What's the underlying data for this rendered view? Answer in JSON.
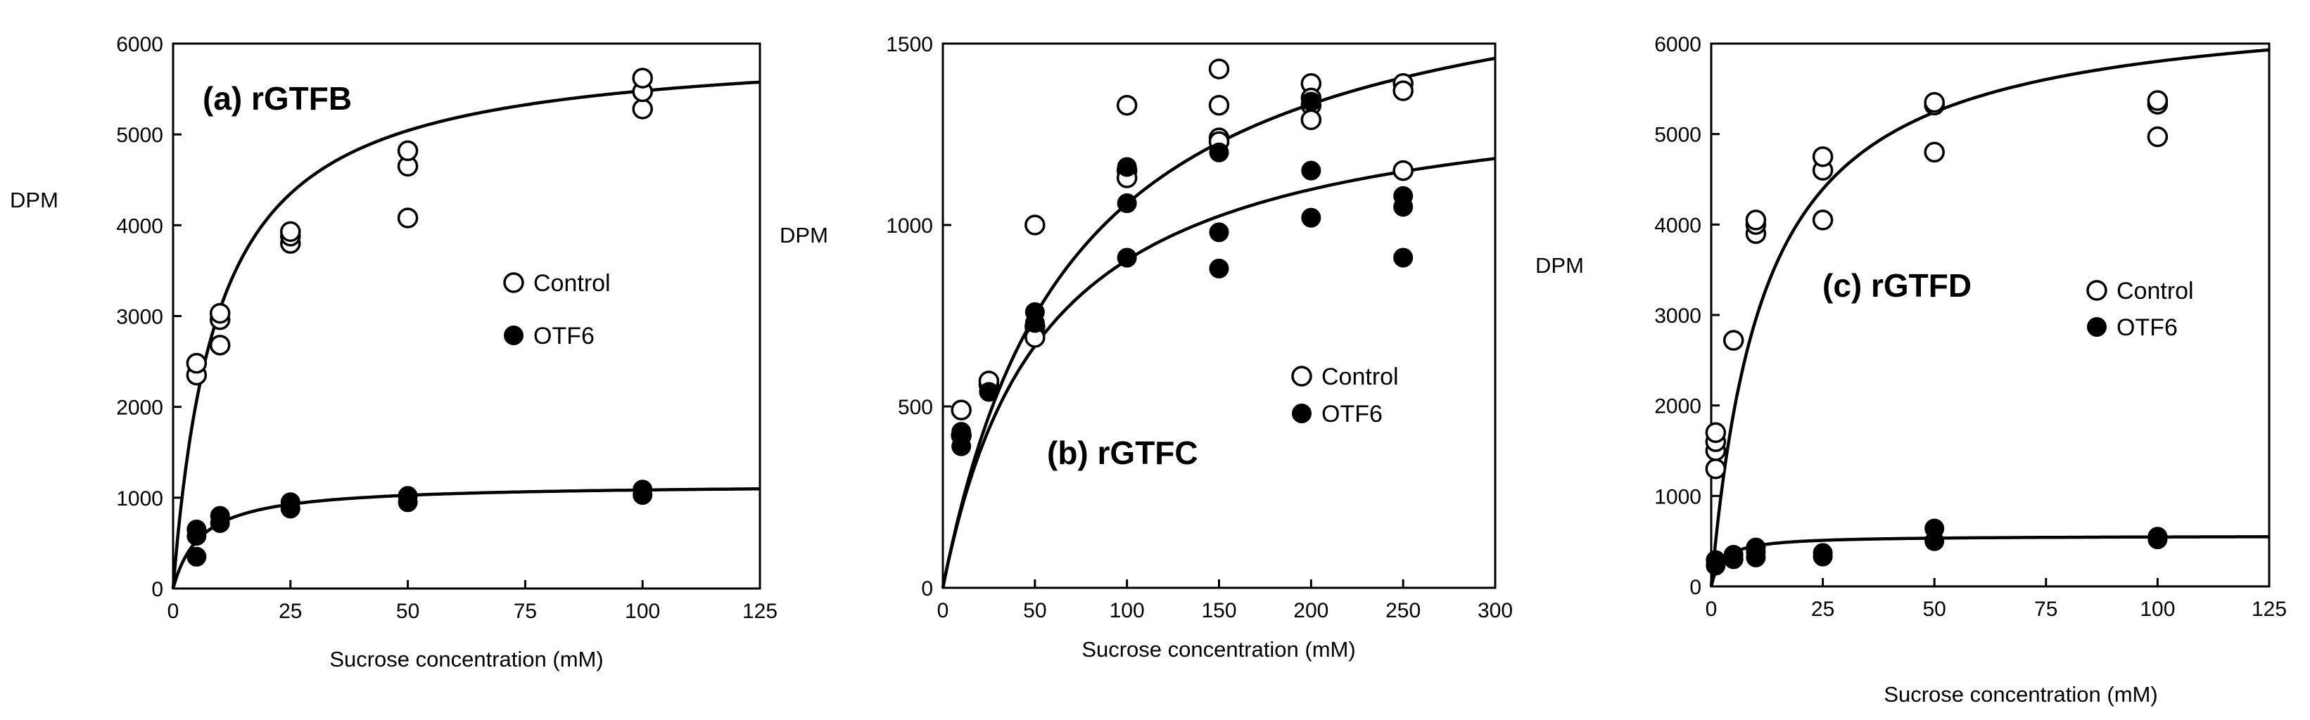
{
  "chart_data": [
    {
      "type": "scatter",
      "title": "(a) rGTFB",
      "xlabel": "Sucrose concentration (mM)",
      "ylabel": "DPM",
      "xlim": [
        0,
        125
      ],
      "ylim": [
        0,
        6000
      ],
      "xticks": [
        0,
        25,
        50,
        75,
        100,
        125
      ],
      "yticks": [
        0,
        1000,
        2000,
        3000,
        4000,
        5000,
        6000
      ],
      "legend": [
        "Control",
        "OTF6"
      ],
      "series": [
        {
          "name": "Control",
          "marker": "open",
          "x": [
            5,
            5,
            10,
            10,
            10,
            25,
            25,
            25,
            50,
            50,
            50,
            100,
            100,
            100
          ],
          "y": [
            2350,
            2480,
            2680,
            2960,
            3030,
            3800,
            3880,
            3930,
            4080,
            4650,
            4820,
            5280,
            5470,
            5620
          ],
          "fit": {
            "vmax": 6000,
            "km": 9.5
          }
        },
        {
          "name": "OTF6",
          "marker": "filled",
          "x": [
            5,
            5,
            5,
            10,
            10,
            25,
            25,
            50,
            50,
            100,
            100
          ],
          "y": [
            350,
            580,
            650,
            720,
            800,
            880,
            950,
            950,
            1020,
            1030,
            1090
          ],
          "fit": {
            "vmax": 1150,
            "km": 6
          }
        }
      ]
    },
    {
      "type": "scatter",
      "title": "(b) rGTFC",
      "xlabel": "Sucrose concentration (mM)",
      "ylabel": "DPM",
      "xlim": [
        0,
        300
      ],
      "ylim": [
        0,
        1500
      ],
      "xticks": [
        0,
        50,
        100,
        150,
        200,
        250,
        300
      ],
      "yticks": [
        0,
        500,
        1000,
        1500
      ],
      "legend": [
        "Control",
        "OTF6"
      ],
      "series": [
        {
          "name": "Control",
          "marker": "open",
          "x": [
            10,
            10,
            25,
            25,
            50,
            50,
            50,
            100,
            100,
            100,
            150,
            150,
            150,
            150,
            200,
            200,
            200,
            200,
            250,
            250,
            250
          ],
          "y": [
            420,
            490,
            560,
            570,
            1000,
            720,
            690,
            1330,
            1150,
            1130,
            1430,
            1330,
            1240,
            1230,
            1390,
            1350,
            1330,
            1290,
            1390,
            1370,
            1150
          ],
          "fit": {
            "vmax": 1800,
            "km": 70
          }
        },
        {
          "name": "OTF6",
          "marker": "filled",
          "x": [
            10,
            10,
            25,
            50,
            50,
            100,
            100,
            100,
            150,
            150,
            150,
            200,
            200,
            200,
            250,
            250,
            250
          ],
          "y": [
            390,
            430,
            540,
            730,
            760,
            1160,
            1060,
            910,
            1200,
            980,
            880,
            1150,
            1020,
            1340,
            1080,
            1050,
            910
          ],
          "fit": {
            "vmax": 1400,
            "km": 55
          }
        }
      ]
    },
    {
      "type": "scatter",
      "title": "(c) rGTFD",
      "xlabel": "Sucrose concentration (mM)",
      "ylabel": "DPM",
      "xlim": [
        0,
        125
      ],
      "ylim": [
        0,
        6000
      ],
      "xticks": [
        0,
        25,
        50,
        75,
        100,
        125
      ],
      "yticks": [
        0,
        1000,
        2000,
        3000,
        4000,
        5000,
        6000
      ],
      "legend": [
        "Control",
        "OTF6"
      ],
      "series": [
        {
          "name": "Control",
          "marker": "open",
          "x": [
            1,
            1,
            1,
            1,
            5,
            10,
            10,
            10,
            25,
            25,
            25,
            50,
            50,
            50,
            100,
            100,
            100
          ],
          "y": [
            1300,
            1500,
            1600,
            1700,
            2720,
            3900,
            4000,
            4050,
            4050,
            4600,
            4750,
            4800,
            5320,
            5350,
            4970,
            5330,
            5370
          ],
          "fit": {
            "vmax": 6500,
            "km": 12
          }
        },
        {
          "name": "OTF6",
          "marker": "filled",
          "x": [
            1,
            1,
            5,
            5,
            10,
            10,
            10,
            25,
            25,
            50,
            50,
            100,
            100
          ],
          "y": [
            230,
            290,
            300,
            350,
            320,
            380,
            430,
            330,
            370,
            500,
            640,
            520,
            550
          ],
          "fit": {
            "vmax": 560,
            "km": 2.5
          }
        }
      ]
    }
  ]
}
